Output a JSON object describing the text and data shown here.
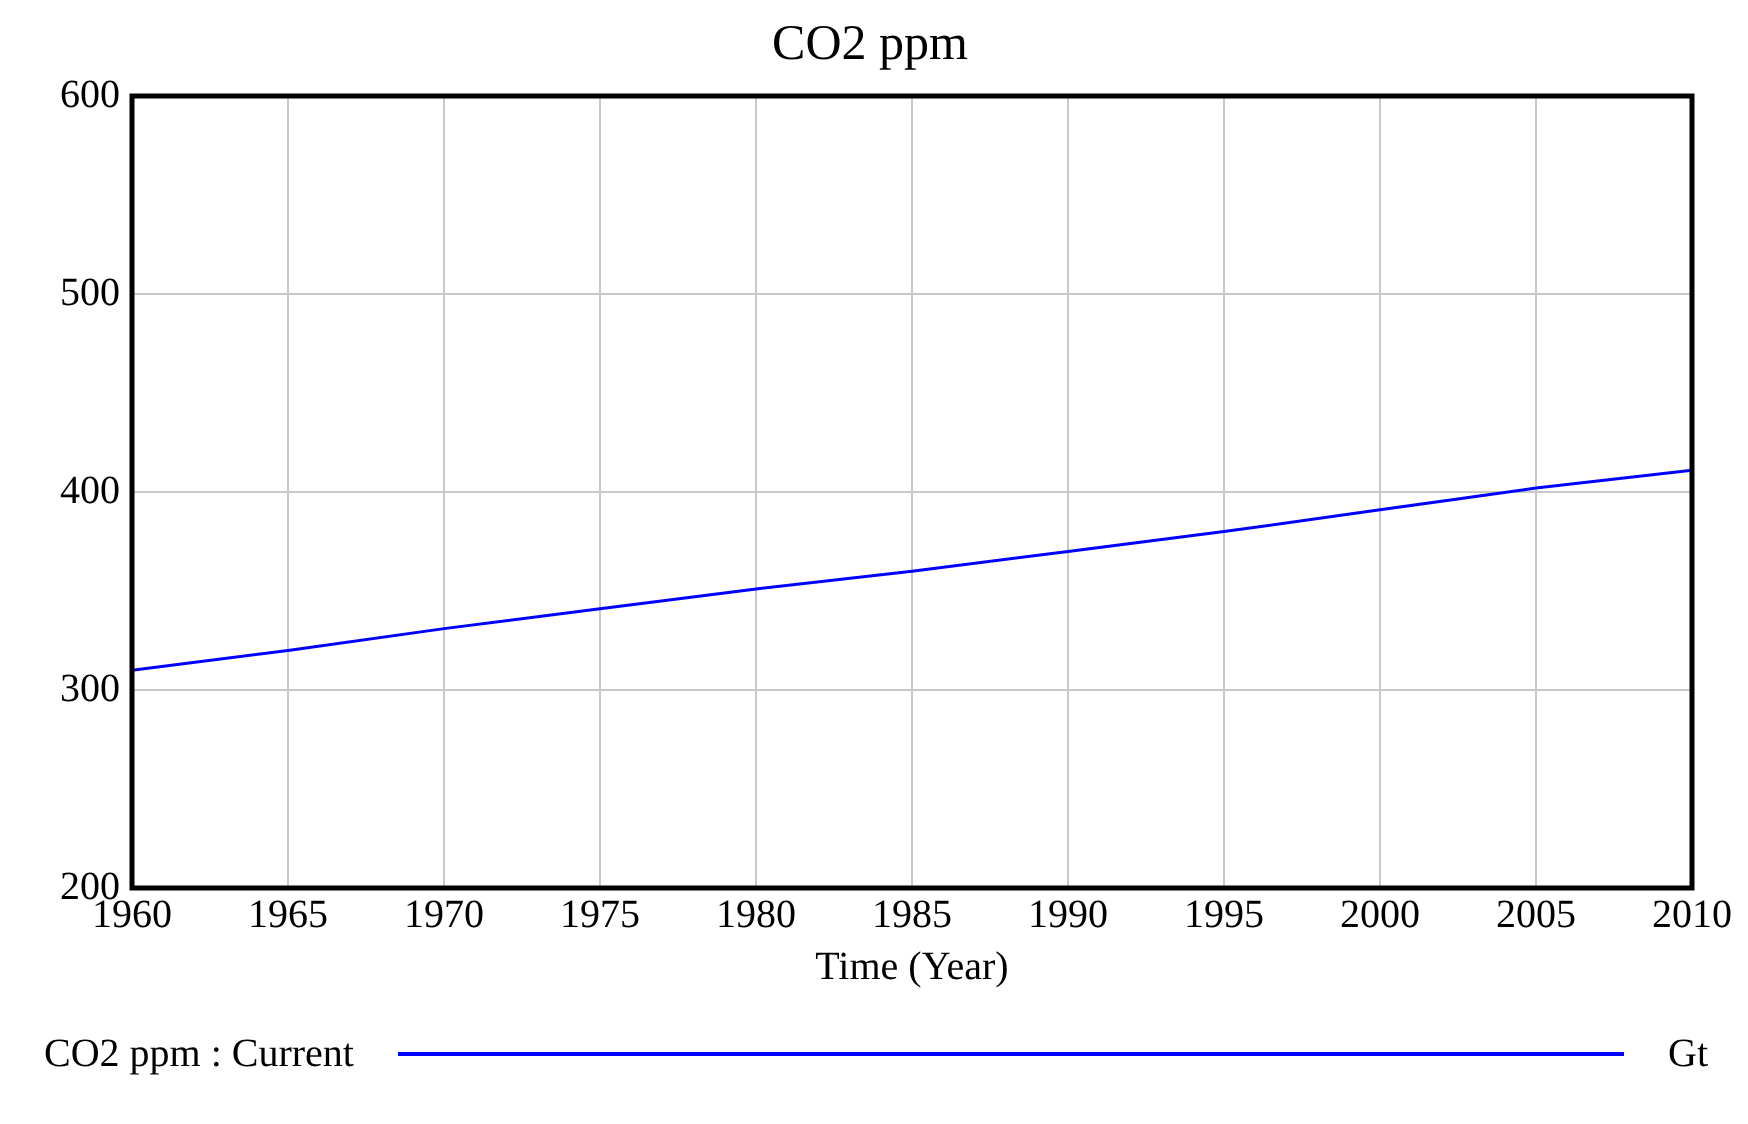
{
  "chart_data": {
    "type": "line",
    "title": "CO2 ppm",
    "xlabel": "Time (Year)",
    "x": [
      1960,
      1965,
      1970,
      1975,
      1980,
      1985,
      1990,
      1995,
      2000,
      2005,
      2010
    ],
    "series": [
      {
        "name": "CO2 ppm : Current",
        "color": "#0000ff",
        "values": [
          310,
          320,
          331,
          341,
          351,
          360,
          370,
          380,
          391,
          402,
          411
        ]
      }
    ],
    "xlim": [
      1960,
      2010
    ],
    "xticks": [
      1960,
      1965,
      1970,
      1975,
      1980,
      1985,
      1990,
      1995,
      2000,
      2005,
      2010
    ],
    "ylim": [
      200,
      600
    ],
    "yticks": [
      200,
      300,
      400,
      500,
      600
    ],
    "grid": true,
    "legend": "bottom",
    "marker": "none",
    "line_style": "solid",
    "annotations": [
      "Gt"
    ]
  }
}
